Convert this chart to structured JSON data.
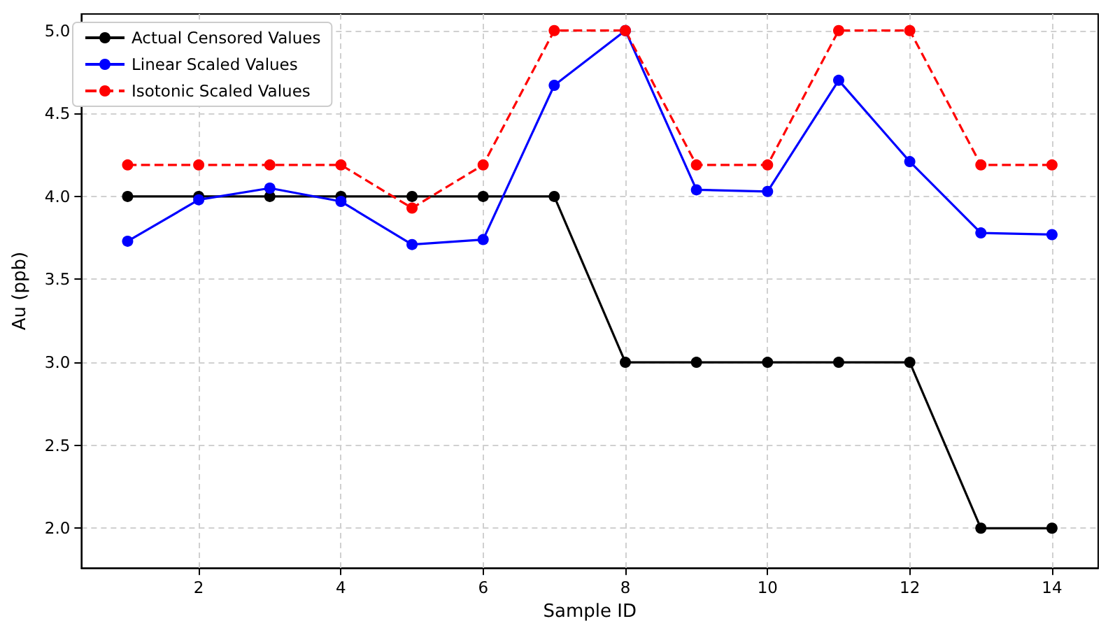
{
  "chart_data": {
    "type": "line",
    "xlabel": "Sample ID",
    "ylabel": "Au (ppb)",
    "x": [
      1,
      2,
      3,
      4,
      5,
      6,
      7,
      8,
      9,
      10,
      11,
      12,
      13,
      14
    ],
    "xlim": [
      0.35,
      14.65
    ],
    "xticks": [
      2,
      4,
      6,
      8,
      10,
      12,
      14
    ],
    "ylim": [
      1.76,
      5.1
    ],
    "yticks": [
      {
        "value": 2,
        "label": "2.0"
      },
      {
        "value": 2.5,
        "label": "2.5"
      },
      {
        "value": 3,
        "label": "3.0"
      },
      {
        "value": 3.5,
        "label": "3.5"
      },
      {
        "value": 4,
        "label": "4.0"
      },
      {
        "value": 4.5,
        "label": "4.5"
      },
      {
        "value": 5,
        "label": "5.0"
      }
    ],
    "grid": true,
    "legend": "top left",
    "marker": "circle",
    "series": [
      {
        "name": "Actual Censored Values",
        "color": "#000000",
        "line_style": "solid",
        "values": [
          4,
          4,
          4,
          4,
          4,
          4,
          4,
          3,
          3,
          3,
          3,
          3,
          2,
          2
        ]
      },
      {
        "name": "Linear Scaled Values",
        "color": "#0000ff",
        "line_style": "solid",
        "values": [
          3.73,
          3.98,
          4.05,
          3.97,
          3.71,
          3.74,
          4.67,
          5.0,
          4.04,
          4.03,
          4.7,
          4.21,
          3.78,
          3.77
        ]
      },
      {
        "name": "Isotonic Scaled Values",
        "color": "#ff0000",
        "line_style": "dashed",
        "values": [
          4.19,
          4.19,
          4.19,
          4.19,
          3.93,
          4.19,
          5.0,
          5.0,
          4.19,
          4.19,
          5.0,
          5.0,
          4.19,
          4.19
        ]
      }
    ]
  }
}
